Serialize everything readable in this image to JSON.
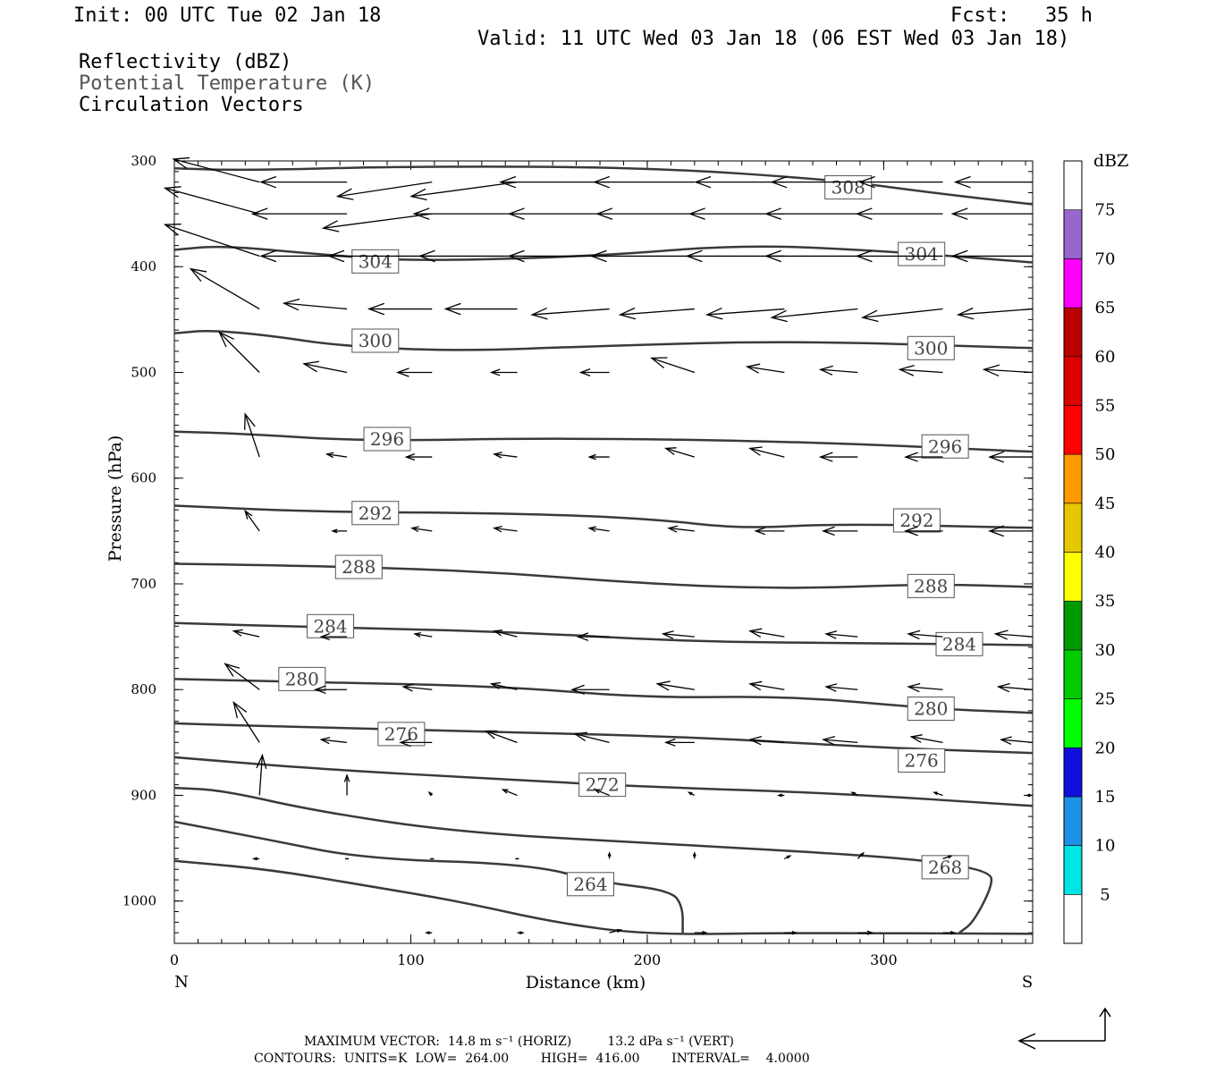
{
  "header": {
    "init": "Init: 00 UTC Tue 02 Jan 18",
    "fcst": "Fcst:   35 h",
    "valid": "Valid: 11 UTC Wed 03 Jan 18 (06 EST Wed 03 Jan 18)",
    "fields": [
      "Reflectivity (dBZ)",
      "Potential Temperature (K)",
      "Circulation Vectors"
    ]
  },
  "footer": {
    "max_vector": "MAXIMUM VECTOR:  14.8 m s⁻¹ (HORIZ)         13.2 dPa s⁻¹ (VERT)",
    "contours": "CONTOURS:  UNITS=K  LOW=  264.00        HIGH=  416.00        INTERVAL=    4.0000"
  },
  "colorbar": {
    "title": "dBZ",
    "levels": [
      5,
      10,
      15,
      20,
      25,
      30,
      35,
      40,
      45,
      50,
      55,
      60,
      65,
      70,
      75
    ],
    "colors": [
      "#ffffff",
      "#00e5e5",
      "#1e90e6",
      "#1010dc",
      "#00ff00",
      "#00cc00",
      "#009900",
      "#ffff00",
      "#e6c800",
      "#ff9900",
      "#ff0000",
      "#dd0000",
      "#bb0000",
      "#ff00ff",
      "#9966cc",
      "#ffffff"
    ]
  },
  "chart_data": {
    "type": "contour",
    "xlabel": "Distance (km)",
    "ylabel": "Pressure (hPa)",
    "xlim": [
      0,
      363
    ],
    "ylim": [
      300,
      1040
    ],
    "xticks": [
      0,
      100,
      200,
      300
    ],
    "yticks": [
      300,
      400,
      500,
      600,
      700,
      800,
      900,
      1000
    ],
    "x_end_labels": {
      "left": "N",
      "right": "S"
    },
    "contours": [
      {
        "level": "308",
        "points": [
          [
            0,
            307
          ],
          [
            30,
            309
          ],
          [
            100,
            305
          ],
          [
            200,
            306
          ],
          [
            280,
            318
          ],
          [
            320,
            330
          ],
          [
            363,
            341
          ]
        ],
        "labels": [
          [
            285,
            325
          ]
        ]
      },
      {
        "level": "304",
        "points": [
          [
            0,
            384
          ],
          [
            20,
            380
          ],
          [
            60,
            388
          ],
          [
            100,
            395
          ],
          [
            180,
            390
          ],
          [
            240,
            379
          ],
          [
            300,
            385
          ],
          [
            363,
            396
          ]
        ],
        "labels": [
          [
            85,
            395
          ],
          [
            316,
            388
          ]
        ]
      },
      {
        "level": "300",
        "points": [
          [
            0,
            463
          ],
          [
            15,
            460
          ],
          [
            40,
            465
          ],
          [
            70,
            475
          ],
          [
            120,
            480
          ],
          [
            180,
            475
          ],
          [
            260,
            470
          ],
          [
            363,
            477
          ]
        ],
        "labels": [
          [
            85,
            470
          ],
          [
            320,
            477
          ]
        ]
      },
      {
        "level": "296",
        "points": [
          [
            0,
            556
          ],
          [
            30,
            558
          ],
          [
            80,
            565
          ],
          [
            160,
            562
          ],
          [
            260,
            565
          ],
          [
            363,
            575
          ]
        ],
        "labels": [
          [
            90,
            563
          ],
          [
            326,
            570
          ]
        ]
      },
      {
        "level": "292",
        "points": [
          [
            0,
            626
          ],
          [
            60,
            632
          ],
          [
            140,
            633
          ],
          [
            200,
            638
          ],
          [
            240,
            648
          ],
          [
            280,
            643
          ],
          [
            363,
            647
          ]
        ],
        "labels": [
          [
            85,
            633
          ],
          [
            314,
            640
          ]
        ]
      },
      {
        "level": "288",
        "points": [
          [
            0,
            681
          ],
          [
            60,
            683
          ],
          [
            130,
            688
          ],
          [
            200,
            700
          ],
          [
            260,
            705
          ],
          [
            320,
            700
          ],
          [
            363,
            703
          ]
        ],
        "labels": [
          [
            78,
            684
          ],
          [
            320,
            702
          ]
        ]
      },
      {
        "level": "284",
        "points": [
          [
            0,
            737
          ],
          [
            60,
            741
          ],
          [
            140,
            745
          ],
          [
            220,
            755
          ],
          [
            300,
            756
          ],
          [
            363,
            758
          ]
        ],
        "labels": [
          [
            66,
            740
          ],
          [
            332,
            757
          ]
        ]
      },
      {
        "level": "280",
        "points": [
          [
            0,
            790
          ],
          [
            60,
            793
          ],
          [
            140,
            797
          ],
          [
            200,
            808
          ],
          [
            260,
            806
          ],
          [
            320,
            818
          ],
          [
            363,
            822
          ]
        ],
        "labels": [
          [
            54,
            790
          ],
          [
            320,
            818
          ]
        ]
      },
      {
        "level": "276",
        "points": [
          [
            0,
            832
          ],
          [
            60,
            836
          ],
          [
            140,
            840
          ],
          [
            220,
            845
          ],
          [
            300,
            855
          ],
          [
            363,
            860
          ]
        ],
        "labels": [
          [
            96,
            842
          ],
          [
            316,
            867
          ]
        ]
      },
      {
        "level": "272",
        "points": [
          [
            0,
            864
          ],
          [
            60,
            875
          ],
          [
            140,
            885
          ],
          [
            200,
            892
          ],
          [
            280,
            898
          ],
          [
            363,
            910
          ]
        ],
        "labels": [
          [
            181,
            890
          ]
        ]
      },
      {
        "level": "268",
        "points": [
          [
            0,
            893
          ],
          [
            20,
            895
          ],
          [
            60,
            915
          ],
          [
            120,
            935
          ],
          [
            200,
            945
          ],
          [
            280,
            955
          ],
          [
            320,
            962
          ],
          [
            345,
            972
          ],
          [
            346,
            985
          ],
          [
            338,
            1020
          ],
          [
            332,
            1030
          ]
        ],
        "labels": [
          [
            326,
            968
          ]
        ]
      },
      {
        "level": "264",
        "points": [
          [
            0,
            925
          ],
          [
            40,
            942
          ],
          [
            80,
            960
          ],
          [
            150,
            965
          ],
          [
            180,
            982
          ],
          [
            210,
            990
          ],
          [
            215,
            1005
          ],
          [
            215,
            1030
          ]
        ],
        "labels": [
          [
            176,
            984
          ]
        ]
      },
      {
        "level": "",
        "points": [
          [
            0,
            962
          ],
          [
            40,
            970
          ],
          [
            80,
            985
          ],
          [
            120,
            1000
          ],
          [
            160,
            1020
          ],
          [
            200,
            1032
          ],
          [
            260,
            1030
          ],
          [
            363,
            1031
          ]
        ],
        "labels": []
      }
    ],
    "vectors": [
      {
        "p": 320,
        "row": [
          [
            36,
            -30,
            8
          ],
          [
            73,
            -30,
            0
          ],
          [
            109,
            -33,
            -5
          ],
          [
            145,
            -37,
            -5
          ],
          [
            184,
            -38,
            0
          ],
          [
            220,
            -35,
            0
          ],
          [
            258,
            -31,
            0
          ],
          [
            289,
            -30,
            0
          ],
          [
            325,
            -29,
            0
          ],
          [
            363,
            -27,
            0
          ]
        ]
      },
      {
        "p": 350,
        "row": [
          [
            36,
            -33,
            9
          ],
          [
            73,
            -33,
            0
          ],
          [
            109,
            -38,
            -5
          ],
          [
            145,
            -36,
            0
          ],
          [
            184,
            -35,
            0
          ],
          [
            220,
            -34,
            0
          ],
          [
            258,
            -33,
            0
          ],
          [
            289,
            -32,
            0
          ],
          [
            325,
            -30,
            0
          ],
          [
            363,
            -28,
            0
          ]
        ]
      },
      {
        "p": 390,
        "row": [
          [
            36,
            -33,
            11
          ],
          [
            73,
            -30,
            0
          ],
          [
            109,
            -36,
            0
          ],
          [
            145,
            -34,
            0
          ],
          [
            184,
            -35,
            0
          ],
          [
            220,
            -36,
            0
          ],
          [
            258,
            -34,
            0
          ],
          [
            289,
            -32,
            0
          ],
          [
            325,
            -30,
            0
          ],
          [
            363,
            -28,
            0
          ]
        ]
      },
      {
        "p": 440,
        "row": [
          [
            36,
            -24,
            14
          ],
          [
            73,
            -22,
            2
          ],
          [
            109,
            -22,
            0
          ],
          [
            145,
            -25,
            0
          ],
          [
            184,
            -27,
            -2
          ],
          [
            220,
            -26,
            -2
          ],
          [
            258,
            -27,
            -2
          ],
          [
            289,
            -30,
            -3
          ],
          [
            325,
            -28,
            -3
          ],
          [
            363,
            -26,
            -2
          ]
        ]
      },
      {
        "p": 500,
        "row": [
          [
            36,
            -14,
            14
          ],
          [
            73,
            -15,
            3
          ],
          [
            109,
            -12,
            0
          ],
          [
            145,
            -9,
            0
          ],
          [
            184,
            -10,
            0
          ],
          [
            220,
            -15,
            5
          ],
          [
            258,
            -13,
            2
          ],
          [
            289,
            -13,
            1
          ],
          [
            325,
            -15,
            1
          ],
          [
            363,
            -17,
            1
          ]
        ]
      },
      {
        "p": 580,
        "row": [
          [
            36,
            -5,
            15
          ],
          [
            73,
            -7,
            1
          ],
          [
            109,
            -9,
            0
          ],
          [
            145,
            -8,
            1
          ],
          [
            184,
            -7,
            0
          ],
          [
            220,
            -10,
            3
          ],
          [
            258,
            -12,
            3
          ],
          [
            289,
            -13,
            0
          ],
          [
            325,
            -13,
            0
          ],
          [
            363,
            -15,
            0
          ]
        ]
      },
      {
        "p": 650,
        "row": [
          [
            36,
            -5,
            7
          ],
          [
            73,
            -5,
            0
          ],
          [
            109,
            -7,
            1
          ],
          [
            145,
            -8,
            1
          ],
          [
            184,
            -7,
            1
          ],
          [
            220,
            -9,
            1
          ],
          [
            258,
            -10,
            0
          ],
          [
            289,
            -12,
            0
          ],
          [
            325,
            -13,
            0
          ],
          [
            363,
            -15,
            0
          ]
        ]
      },
      {
        "p": 750,
        "row": [
          [
            36,
            -9,
            2
          ],
          [
            73,
            -9,
            0
          ],
          [
            109,
            -6,
            1
          ],
          [
            145,
            -8,
            2
          ],
          [
            184,
            -11,
            0
          ],
          [
            220,
            -11,
            1
          ],
          [
            258,
            -12,
            2
          ],
          [
            289,
            -11,
            1
          ],
          [
            325,
            -12,
            1
          ],
          [
            363,
            -13,
            1
          ]
        ]
      },
      {
        "p": 800,
        "row": [
          [
            36,
            -12,
            9
          ],
          [
            73,
            -11,
            0
          ],
          [
            109,
            -10,
            1
          ],
          [
            145,
            -9,
            2
          ],
          [
            184,
            -13,
            0
          ],
          [
            220,
            -13,
            2
          ],
          [
            258,
            -12,
            2
          ],
          [
            289,
            -11,
            1
          ],
          [
            325,
            -12,
            1
          ],
          [
            363,
            -12,
            1
          ]
        ]
      },
      {
        "p": 850,
        "row": [
          [
            36,
            -9,
            14
          ],
          [
            73,
            -9,
            1
          ],
          [
            109,
            -11,
            0
          ],
          [
            145,
            -11,
            4
          ],
          [
            184,
            -12,
            3
          ],
          [
            220,
            -10,
            0
          ],
          [
            258,
            -12,
            1
          ],
          [
            289,
            -12,
            1
          ],
          [
            325,
            -11,
            2
          ],
          [
            363,
            -11,
            1
          ]
        ]
      },
      {
        "p": 900,
        "row": [
          [
            36,
            1,
            14
          ],
          [
            73,
            0,
            7
          ],
          [
            109,
            -1,
            1
          ],
          [
            145,
            -5,
            2
          ],
          [
            184,
            -5,
            2
          ],
          [
            220,
            -2,
            1
          ],
          [
            258,
            -2,
            0
          ],
          [
            289,
            -2,
            1
          ],
          [
            325,
            -3,
            1
          ],
          [
            363,
            -2,
            0
          ]
        ]
      },
      {
        "p": 960,
        "row": [
          [
            36,
            -2,
            0
          ],
          [
            73,
            0,
            0
          ],
          [
            109,
            0,
            0
          ],
          [
            145,
            0,
            0
          ],
          [
            184,
            0,
            2
          ],
          [
            220,
            0,
            2
          ],
          [
            258,
            2,
            1
          ],
          [
            289,
            2,
            2
          ],
          [
            325,
            3,
            1
          ]
        ]
      },
      {
        "p": 1030,
        "row": [
          [
            109,
            -2,
            0
          ],
          [
            145,
            2,
            0
          ],
          [
            184,
            4,
            1
          ],
          [
            220,
            4,
            0
          ],
          [
            258,
            4,
            0
          ],
          [
            289,
            5,
            0
          ],
          [
            325,
            4,
            0
          ]
        ]
      }
    ]
  }
}
